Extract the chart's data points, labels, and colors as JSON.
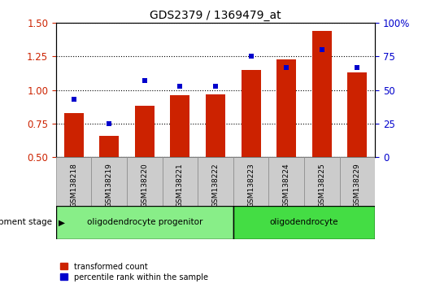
{
  "title": "GDS2379 / 1369479_at",
  "samples": [
    "GSM138218",
    "GSM138219",
    "GSM138220",
    "GSM138221",
    "GSM138222",
    "GSM138223",
    "GSM138224",
    "GSM138225",
    "GSM138229"
  ],
  "bar_values": [
    0.83,
    0.66,
    0.88,
    0.96,
    0.97,
    1.15,
    1.23,
    1.44,
    1.13
  ],
  "dot_values": [
    0.93,
    0.75,
    1.07,
    1.03,
    1.03,
    1.25,
    1.17,
    1.3,
    1.17
  ],
  "ylim": [
    0.5,
    1.5
  ],
  "y2lim": [
    0,
    100
  ],
  "yticks": [
    0.5,
    0.75,
    1.0,
    1.25,
    1.5
  ],
  "y2ticks": [
    0,
    25,
    50,
    75,
    100
  ],
  "bar_color": "#CC2200",
  "dot_color": "#0000CC",
  "bar_width": 0.55,
  "groups": [
    {
      "label": "oligodendrocyte progenitor",
      "n": 5,
      "color": "#88EE88"
    },
    {
      "label": "oligodendrocyte",
      "n": 4,
      "color": "#44DD44"
    }
  ],
  "group_label_prefix": "development stage",
  "legend_items": [
    {
      "label": "transformed count",
      "color": "#CC2200"
    },
    {
      "label": "percentile rank within the sample",
      "color": "#0000CC"
    }
  ],
  "tick_label_color_left": "#CC2200",
  "tick_label_color_right": "#0000CC",
  "tick_box_color": "#CCCCCC",
  "tick_box_edge": "#888888"
}
